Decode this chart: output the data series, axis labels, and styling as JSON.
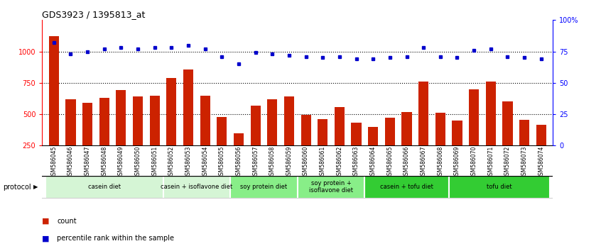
{
  "title": "GDS3923 / 1395813_at",
  "samples": [
    "GSM586045",
    "GSM586046",
    "GSM586047",
    "GSM586048",
    "GSM586049",
    "GSM586050",
    "GSM586051",
    "GSM586052",
    "GSM586053",
    "GSM586054",
    "GSM586055",
    "GSM586056",
    "GSM586057",
    "GSM586058",
    "GSM586059",
    "GSM586060",
    "GSM586061",
    "GSM586062",
    "GSM586063",
    "GSM586064",
    "GSM586065",
    "GSM586066",
    "GSM586067",
    "GSM586068",
    "GSM586069",
    "GSM586070",
    "GSM586071",
    "GSM586072",
    "GSM586073",
    "GSM586074"
  ],
  "counts": [
    1120,
    620,
    590,
    630,
    690,
    640,
    650,
    790,
    855,
    650,
    480,
    350,
    570,
    620,
    640,
    495,
    460,
    555,
    430,
    400,
    470,
    515,
    760,
    510,
    450,
    700,
    760,
    600,
    455,
    415
  ],
  "percentile_ranks": [
    82,
    73,
    75,
    77,
    78,
    77,
    78,
    78,
    80,
    77,
    71,
    65,
    74,
    73,
    72,
    71,
    70,
    71,
    69,
    69,
    70,
    71,
    78,
    71,
    70,
    76,
    77,
    71,
    70,
    69
  ],
  "protocols": [
    {
      "label": "casein diet",
      "start": 0,
      "end": 7,
      "color": "#d5f5d5"
    },
    {
      "label": "casein + isoflavone diet",
      "start": 7,
      "end": 11,
      "color": "#d5f5d5"
    },
    {
      "label": "soy protein diet",
      "start": 11,
      "end": 15,
      "color": "#88ee88"
    },
    {
      "label": "soy protein +\nisoflavone diet",
      "start": 15,
      "end": 19,
      "color": "#88ee88"
    },
    {
      "label": "casein + tofu diet",
      "start": 19,
      "end": 24,
      "color": "#33cc33"
    },
    {
      "label": "tofu diet",
      "start": 24,
      "end": 30,
      "color": "#33cc33"
    }
  ],
  "ylim_left": [
    250,
    1250
  ],
  "ylim_right": [
    0,
    100
  ],
  "bar_color": "#cc2200",
  "dot_color": "#0000cc",
  "yticks_left": [
    250,
    500,
    750,
    1000
  ],
  "yticks_right": [
    0,
    25,
    50,
    75,
    100
  ],
  "grid_values": [
    500,
    750,
    1000
  ],
  "bar_bottom": 250
}
